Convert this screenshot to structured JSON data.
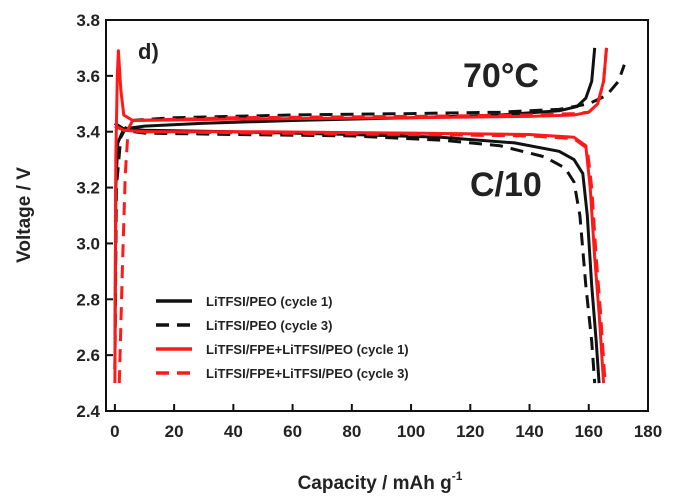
{
  "chart_data": {
    "type": "line",
    "panel_label": "d)",
    "annotations": [
      "70°C",
      "C/10"
    ],
    "xlabel": "Capacity / mAh g",
    "xlabel_sup": "-1",
    "ylabel": "Voltage / V",
    "xlim": [
      -3,
      180
    ],
    "ylim": [
      2.4,
      3.8
    ],
    "xticks": [
      0,
      20,
      40,
      60,
      80,
      100,
      120,
      140,
      160,
      180
    ],
    "yticks": [
      "2.4",
      "2.6",
      "2.8",
      "3.0",
      "3.2",
      "3.4",
      "3.6",
      "3.8"
    ],
    "grid": false,
    "legend_position": "lower-left",
    "series": [
      {
        "name": "LiTFSI/PEO (cycle 1)",
        "color": "#111111",
        "dash": "solid",
        "charge": [
          [
            0,
            2.55
          ],
          [
            0.3,
            3.2
          ],
          [
            1,
            3.36
          ],
          [
            3,
            3.41
          ],
          [
            10,
            3.42
          ],
          [
            30,
            3.43
          ],
          [
            60,
            3.44
          ],
          [
            100,
            3.45
          ],
          [
            130,
            3.46
          ],
          [
            150,
            3.475
          ],
          [
            156,
            3.49
          ],
          [
            159,
            3.52
          ],
          [
            161,
            3.58
          ],
          [
            162,
            3.7
          ]
        ],
        "discharge": [
          [
            0,
            3.43
          ],
          [
            3,
            3.41
          ],
          [
            10,
            3.405
          ],
          [
            40,
            3.4
          ],
          [
            80,
            3.39
          ],
          [
            110,
            3.38
          ],
          [
            135,
            3.36
          ],
          [
            150,
            3.33
          ],
          [
            155,
            3.3
          ],
          [
            158,
            3.25
          ],
          [
            159.5,
            3.1
          ],
          [
            161,
            2.85
          ],
          [
            162.5,
            2.65
          ],
          [
            163.5,
            2.5
          ]
        ]
      },
      {
        "name": "LiTFSI/PEO (cycle 3)",
        "color": "#111111",
        "dash": "dashed",
        "charge": [
          [
            0,
            2.55
          ],
          [
            0.5,
            3.2
          ],
          [
            2,
            3.38
          ],
          [
            5,
            3.44
          ],
          [
            20,
            3.45
          ],
          [
            60,
            3.46
          ],
          [
            100,
            3.465
          ],
          [
            130,
            3.47
          ],
          [
            150,
            3.48
          ],
          [
            160,
            3.5
          ],
          [
            166,
            3.53
          ],
          [
            170,
            3.58
          ],
          [
            172,
            3.64
          ]
        ],
        "discharge": [
          [
            0,
            3.43
          ],
          [
            3,
            3.405
          ],
          [
            10,
            3.395
          ],
          [
            40,
            3.39
          ],
          [
            80,
            3.385
          ],
          [
            110,
            3.37
          ],
          [
            130,
            3.35
          ],
          [
            145,
            3.31
          ],
          [
            152,
            3.27
          ],
          [
            155,
            3.22
          ],
          [
            157,
            3.1
          ],
          [
            159,
            2.85
          ],
          [
            161,
            2.65
          ],
          [
            162,
            2.5
          ]
        ]
      },
      {
        "name": "LiTFSI/FPE+LiTFSI/PEO (cycle 1)",
        "color": "#ff1a1a",
        "dash": "solid",
        "charge": [
          [
            0,
            2.5
          ],
          [
            0.3,
            3.3
          ],
          [
            0.8,
            3.6
          ],
          [
            1.2,
            3.69
          ],
          [
            2,
            3.55
          ],
          [
            3,
            3.46
          ],
          [
            6,
            3.44
          ],
          [
            40,
            3.445
          ],
          [
            100,
            3.45
          ],
          [
            140,
            3.455
          ],
          [
            155,
            3.46
          ],
          [
            160,
            3.47
          ],
          [
            163,
            3.5
          ],
          [
            165,
            3.58
          ],
          [
            166,
            3.7
          ]
        ],
        "discharge": [
          [
            0,
            3.42
          ],
          [
            3,
            3.405
          ],
          [
            10,
            3.4
          ],
          [
            50,
            3.4
          ],
          [
            100,
            3.395
          ],
          [
            140,
            3.39
          ],
          [
            155,
            3.38
          ],
          [
            159,
            3.35
          ],
          [
            160.5,
            3.2
          ],
          [
            162,
            2.95
          ],
          [
            163.5,
            2.75
          ],
          [
            165,
            2.5
          ]
        ]
      },
      {
        "name": "LiTFSI/FPE+LiTFSI/PEO (cycle 3)",
        "color": "#ff1a1a",
        "dash": "dashed",
        "charge": [
          [
            1.5,
            2.5
          ],
          [
            2.5,
            2.9
          ],
          [
            3.5,
            3.25
          ],
          [
            4.5,
            3.41
          ],
          [
            6,
            3.44
          ],
          [
            40,
            3.45
          ],
          [
            100,
            3.455
          ],
          [
            140,
            3.46
          ],
          [
            155,
            3.465
          ],
          [
            160,
            3.47
          ],
          [
            163,
            3.5
          ],
          [
            165,
            3.58
          ],
          [
            166,
            3.7
          ]
        ],
        "discharge": [
          [
            0,
            3.42
          ],
          [
            3,
            3.405
          ],
          [
            10,
            3.4
          ],
          [
            50,
            3.395
          ],
          [
            100,
            3.39
          ],
          [
            140,
            3.385
          ],
          [
            155,
            3.375
          ],
          [
            159.5,
            3.34
          ],
          [
            161,
            3.2
          ],
          [
            162.5,
            2.95
          ],
          [
            164,
            2.75
          ],
          [
            165.5,
            2.5
          ]
        ]
      }
    ]
  }
}
